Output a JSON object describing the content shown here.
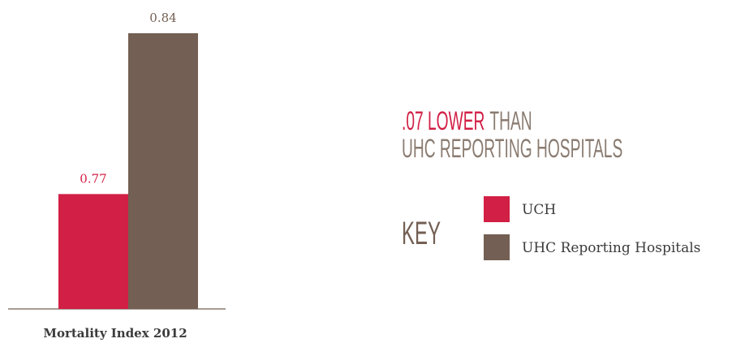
{
  "chart_data": {
    "type": "bar",
    "categories": [
      null
    ],
    "series": [
      {
        "name": "UCH",
        "color": "#d21f45",
        "values": [
          0.77
        ]
      },
      {
        "name": "UHC Reporting Hospitals",
        "color": "#735f53",
        "values": [
          0.84
        ]
      }
    ],
    "ylim": [
      0.72,
      0.84
    ],
    "x_label": "Mortality Index 2012",
    "annotation": {
      "highlight": ".07 LOWER",
      "rest": "THAN",
      "line2": "UHC REPORTING HOSPITALS"
    },
    "legend_title": "KEY"
  }
}
